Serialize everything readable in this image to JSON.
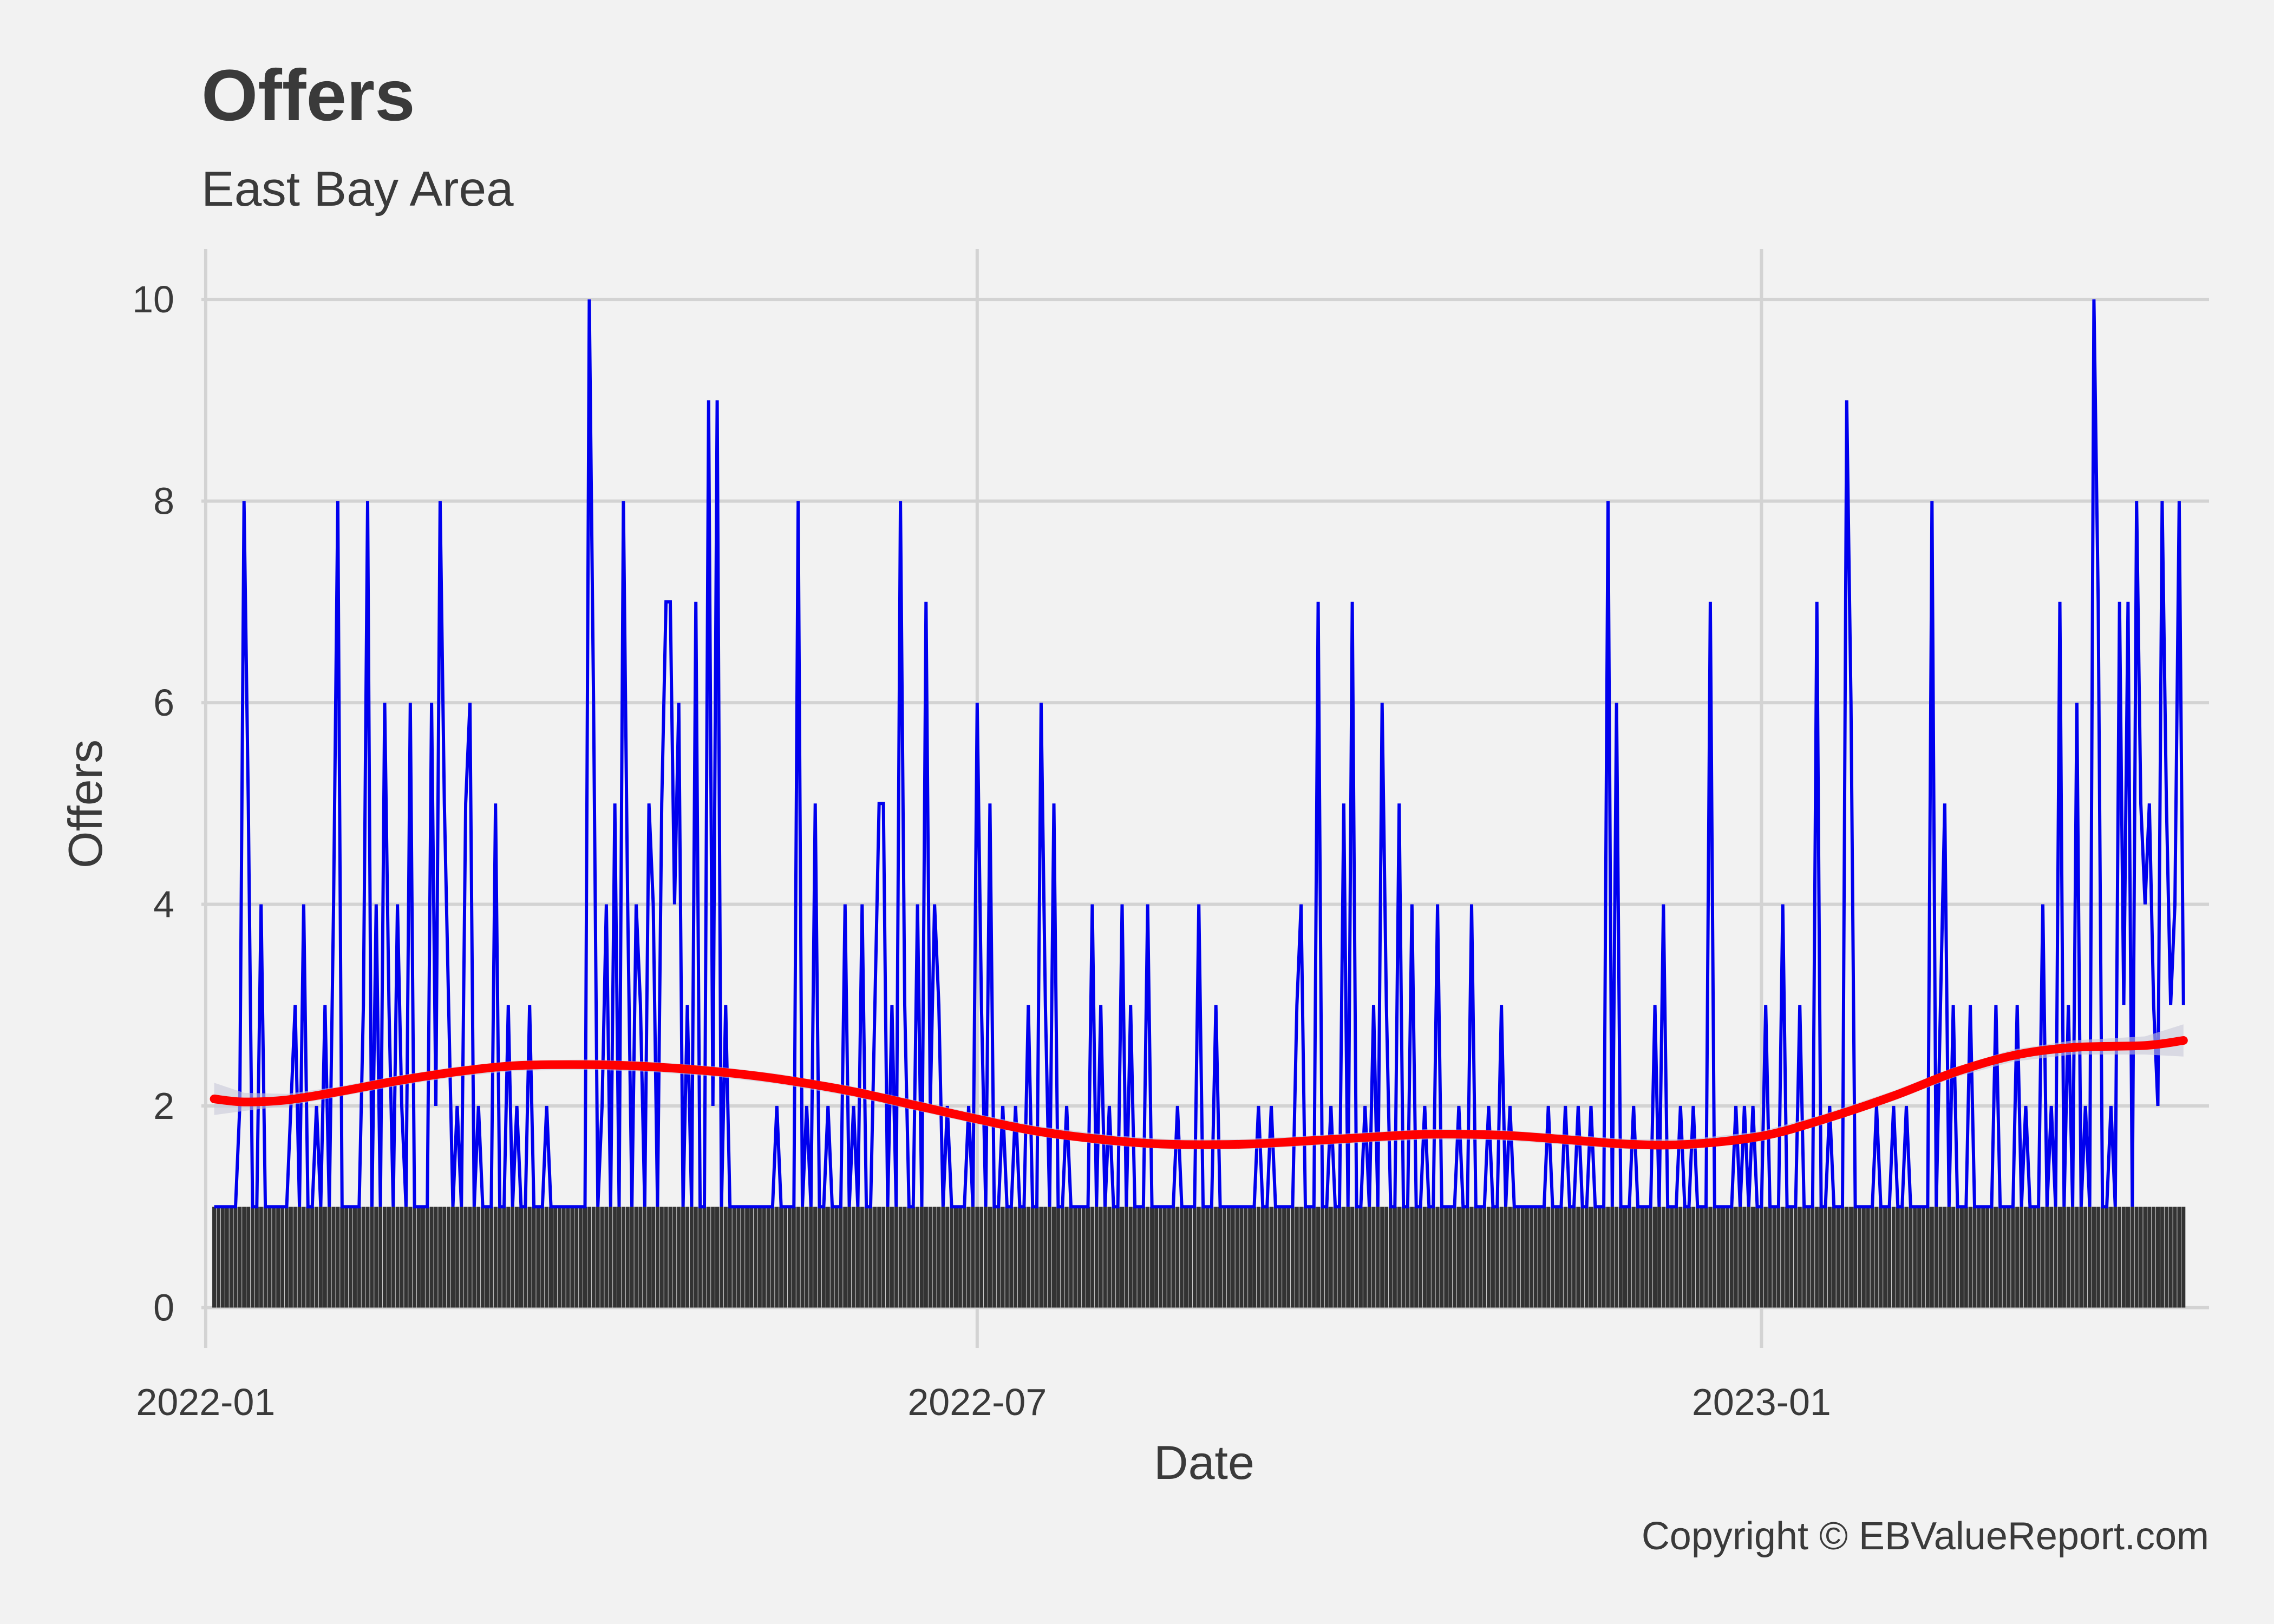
{
  "chart_data": {
    "type": "line",
    "title": "Offers",
    "subtitle": "East Bay  Area",
    "xlabel": "Date",
    "ylabel": "Offers",
    "caption": "Copyright  © EBValueReport.com",
    "x_range": [
      "2021-12-31",
      "2023-04-16"
    ],
    "ylim": [
      -0.4,
      10.5
    ],
    "x_ticks": [
      {
        "date": "2022-01-01",
        "label": "2022-01"
      },
      {
        "date": "2022-07-01",
        "label": "2022-07"
      },
      {
        "date": "2023-01-01",
        "label": "2023-01"
      }
    ],
    "y_ticks": [
      0,
      2,
      4,
      6,
      8,
      10
    ],
    "grid": true,
    "legend": "none",
    "colors": {
      "background": "#f2f2f2",
      "line": "#0000ee",
      "bars": "#333333",
      "smooth": "#ff0000",
      "ribbon": "#c8c8d8",
      "grid": "#d3d3d3"
    },
    "series": [
      {
        "type": "line",
        "color": "#0000ee",
        "date_start": "2022-01-03",
        "date_end": "2023-04-10",
        "baseline": 1,
        "spikes": [
          [
            "2022-01-03",
            1
          ],
          [
            "2022-01-09",
            2
          ],
          [
            "2022-01-10",
            8
          ],
          [
            "2022-01-11",
            5
          ],
          [
            "2022-01-13",
            1
          ],
          [
            "2022-01-14",
            4
          ],
          [
            "2022-01-19",
            1
          ],
          [
            "2022-01-21",
            2
          ],
          [
            "2022-01-22",
            3
          ],
          [
            "2022-01-24",
            4
          ],
          [
            "2022-01-27",
            2
          ],
          [
            "2022-01-29",
            3
          ],
          [
            "2022-01-31",
            4
          ],
          [
            "2022-02-01",
            8
          ],
          [
            "2022-02-03",
            1
          ],
          [
            "2022-02-07",
            3
          ],
          [
            "2022-02-08",
            8
          ],
          [
            "2022-02-10",
            4
          ],
          [
            "2022-02-12",
            6
          ],
          [
            "2022-02-13",
            3
          ],
          [
            "2022-02-15",
            4
          ],
          [
            "2022-02-16",
            2
          ],
          [
            "2022-02-18",
            6
          ],
          [
            "2022-02-22",
            1
          ],
          [
            "2022-02-23",
            6
          ],
          [
            "2022-02-24",
            2
          ],
          [
            "2022-02-25",
            8
          ],
          [
            "2022-02-26",
            5
          ],
          [
            "2022-02-27",
            3
          ],
          [
            "2022-03-01",
            2
          ],
          [
            "2022-03-03",
            5
          ],
          [
            "2022-03-04",
            6
          ],
          [
            "2022-03-06",
            2
          ],
          [
            "2022-03-10",
            5
          ],
          [
            "2022-03-13",
            3
          ],
          [
            "2022-03-15",
            2
          ],
          [
            "2022-03-18",
            3
          ],
          [
            "2022-03-20",
            1
          ],
          [
            "2022-03-22",
            2
          ],
          [
            "2022-04-01",
            10
          ],
          [
            "2022-04-02",
            6
          ],
          [
            "2022-04-04",
            2
          ],
          [
            "2022-04-05",
            4
          ],
          [
            "2022-04-07",
            5
          ],
          [
            "2022-04-09",
            8
          ],
          [
            "2022-04-10",
            4
          ],
          [
            "2022-04-12",
            4
          ],
          [
            "2022-04-13",
            3
          ],
          [
            "2022-04-15",
            5
          ],
          [
            "2022-04-16",
            4
          ],
          [
            "2022-04-18",
            5
          ],
          [
            "2022-04-19",
            7
          ],
          [
            "2022-04-20",
            7
          ],
          [
            "2022-04-21",
            4
          ],
          [
            "2022-04-22",
            6
          ],
          [
            "2022-04-24",
            3
          ],
          [
            "2022-04-26",
            7
          ],
          [
            "2022-04-29",
            9
          ],
          [
            "2022-04-30",
            2
          ],
          [
            "2022-05-01",
            9
          ],
          [
            "2022-05-03",
            3
          ],
          [
            "2022-05-08",
            1
          ],
          [
            "2022-05-15",
            2
          ],
          [
            "2022-05-20",
            8
          ],
          [
            "2022-05-22",
            2
          ],
          [
            "2022-05-24",
            5
          ],
          [
            "2022-05-27",
            2
          ],
          [
            "2022-05-31",
            4
          ],
          [
            "2022-06-02",
            2
          ],
          [
            "2022-06-04",
            4
          ],
          [
            "2022-06-07",
            3
          ],
          [
            "2022-06-08",
            5
          ],
          [
            "2022-06-09",
            5
          ],
          [
            "2022-06-11",
            3
          ],
          [
            "2022-06-13",
            8
          ],
          [
            "2022-06-14",
            3
          ],
          [
            "2022-06-17",
            4
          ],
          [
            "2022-06-19",
            7
          ],
          [
            "2022-06-20",
            2
          ],
          [
            "2022-06-21",
            4
          ],
          [
            "2022-06-22",
            3
          ],
          [
            "2022-06-24",
            2
          ],
          [
            "2022-06-29",
            2
          ],
          [
            "2022-07-01",
            6
          ],
          [
            "2022-07-02",
            3
          ],
          [
            "2022-07-04",
            5
          ],
          [
            "2022-07-07",
            2
          ],
          [
            "2022-07-10",
            2
          ],
          [
            "2022-07-13",
            3
          ],
          [
            "2022-07-16",
            6
          ],
          [
            "2022-07-17",
            3
          ],
          [
            "2022-07-19",
            5
          ],
          [
            "2022-07-22",
            2
          ],
          [
            "2022-07-28",
            4
          ],
          [
            "2022-07-30",
            3
          ],
          [
            "2022-08-01",
            2
          ],
          [
            "2022-08-04",
            4
          ],
          [
            "2022-08-06",
            3
          ],
          [
            "2022-08-10",
            4
          ],
          [
            "2022-08-17",
            2
          ],
          [
            "2022-08-22",
            4
          ],
          [
            "2022-08-26",
            3
          ],
          [
            "2022-09-05",
            2
          ],
          [
            "2022-09-08",
            2
          ],
          [
            "2022-09-14",
            3
          ],
          [
            "2022-09-15",
            4
          ],
          [
            "2022-09-19",
            7
          ],
          [
            "2022-09-22",
            2
          ],
          [
            "2022-09-25",
            5
          ],
          [
            "2022-09-27",
            7
          ],
          [
            "2022-09-30",
            2
          ],
          [
            "2022-10-02",
            3
          ],
          [
            "2022-10-04",
            6
          ],
          [
            "2022-10-05",
            3
          ],
          [
            "2022-10-08",
            5
          ],
          [
            "2022-10-11",
            4
          ],
          [
            "2022-10-14",
            2
          ],
          [
            "2022-10-17",
            4
          ],
          [
            "2022-10-22",
            2
          ],
          [
            "2022-10-25",
            4
          ],
          [
            "2022-10-29",
            2
          ],
          [
            "2022-11-01",
            3
          ],
          [
            "2022-11-03",
            2
          ],
          [
            "2022-11-08",
            1
          ],
          [
            "2022-11-12",
            2
          ],
          [
            "2022-11-16",
            2
          ],
          [
            "2022-11-19",
            2
          ],
          [
            "2022-11-22",
            2
          ],
          [
            "2022-11-26",
            8
          ],
          [
            "2022-11-28",
            6
          ],
          [
            "2022-12-02",
            2
          ],
          [
            "2022-12-07",
            3
          ],
          [
            "2022-12-09",
            4
          ],
          [
            "2022-12-13",
            2
          ],
          [
            "2022-12-16",
            2
          ],
          [
            "2022-12-20",
            7
          ],
          [
            "2022-12-26",
            2
          ],
          [
            "2022-12-28",
            2
          ],
          [
            "2022-12-30",
            2
          ],
          [
            "2023-01-02",
            3
          ],
          [
            "2023-01-06",
            4
          ],
          [
            "2023-01-10",
            3
          ],
          [
            "2023-01-14",
            7
          ],
          [
            "2023-01-17",
            2
          ],
          [
            "2023-01-21",
            9
          ],
          [
            "2023-01-22",
            6
          ],
          [
            "2023-01-28",
            2
          ],
          [
            "2023-02-01",
            2
          ],
          [
            "2023-02-04",
            2
          ],
          [
            "2023-02-10",
            8
          ],
          [
            "2023-02-12",
            3
          ],
          [
            "2023-02-13",
            5
          ],
          [
            "2023-02-15",
            3
          ],
          [
            "2023-02-19",
            3
          ],
          [
            "2023-02-25",
            3
          ],
          [
            "2023-03-02",
            3
          ],
          [
            "2023-03-04",
            2
          ],
          [
            "2023-03-08",
            4
          ],
          [
            "2023-03-10",
            2
          ],
          [
            "2023-03-12",
            7
          ],
          [
            "2023-03-14",
            3
          ],
          [
            "2023-03-16",
            6
          ],
          [
            "2023-03-18",
            2
          ],
          [
            "2023-03-20",
            10
          ],
          [
            "2023-03-21",
            7
          ],
          [
            "2023-03-24",
            2
          ],
          [
            "2023-03-26",
            7
          ],
          [
            "2023-03-27",
            3
          ],
          [
            "2023-03-28",
            7
          ],
          [
            "2023-03-30",
            8
          ],
          [
            "2023-03-31",
            5
          ],
          [
            "2023-04-01",
            4
          ],
          [
            "2023-04-02",
            5
          ],
          [
            "2023-04-03",
            3
          ],
          [
            "2023-04-04",
            2
          ],
          [
            "2023-04-05",
            8
          ],
          [
            "2023-04-06",
            5
          ],
          [
            "2023-04-07",
            3
          ],
          [
            "2023-04-08",
            4
          ],
          [
            "2023-04-09",
            8
          ],
          [
            "2023-04-10",
            3
          ]
        ]
      },
      {
        "type": "bar",
        "color": "#333333",
        "date_start": "2022-01-03",
        "date_end": "2023-04-10",
        "value": 1
      },
      {
        "type": "smooth",
        "color": "#ff0000",
        "points": [
          [
            "2022-01-03",
            2.07
          ],
          [
            "2022-01-10",
            2.04
          ],
          [
            "2022-01-20",
            2.06
          ],
          [
            "2022-02-01",
            2.14
          ],
          [
            "2022-02-15",
            2.25
          ],
          [
            "2022-03-01",
            2.34
          ],
          [
            "2022-03-15",
            2.4
          ],
          [
            "2022-04-01",
            2.41
          ],
          [
            "2022-04-15",
            2.39
          ],
          [
            "2022-05-01",
            2.34
          ],
          [
            "2022-05-15",
            2.27
          ],
          [
            "2022-06-01",
            2.15
          ],
          [
            "2022-06-15",
            2.02
          ],
          [
            "2022-07-01",
            1.87
          ],
          [
            "2022-07-15",
            1.75
          ],
          [
            "2022-08-01",
            1.66
          ],
          [
            "2022-08-15",
            1.62
          ],
          [
            "2022-09-01",
            1.62
          ],
          [
            "2022-09-15",
            1.65
          ],
          [
            "2022-10-01",
            1.69
          ],
          [
            "2022-10-15",
            1.72
          ],
          [
            "2022-11-01",
            1.71
          ],
          [
            "2022-11-15",
            1.67
          ],
          [
            "2022-12-01",
            1.62
          ],
          [
            "2022-12-15",
            1.62
          ],
          [
            "2023-01-01",
            1.7
          ],
          [
            "2023-01-15",
            1.86
          ],
          [
            "2023-02-01",
            2.1
          ],
          [
            "2023-02-15",
            2.33
          ],
          [
            "2023-03-01",
            2.5
          ],
          [
            "2023-03-15",
            2.58
          ],
          [
            "2023-04-01",
            2.6
          ],
          [
            "2023-04-10",
            2.65
          ]
        ],
        "band_half_width": [
          0.16,
          0.09,
          0.06,
          0.05,
          0.05,
          0.05,
          0.05,
          0.05,
          0.05,
          0.05,
          0.05,
          0.05,
          0.05,
          0.05,
          0.05,
          0.05,
          0.05,
          0.05,
          0.05,
          0.05,
          0.05,
          0.05,
          0.05,
          0.05,
          0.05,
          0.05,
          0.05,
          0.05,
          0.05,
          0.06,
          0.07,
          0.09,
          0.16
        ]
      }
    ]
  }
}
